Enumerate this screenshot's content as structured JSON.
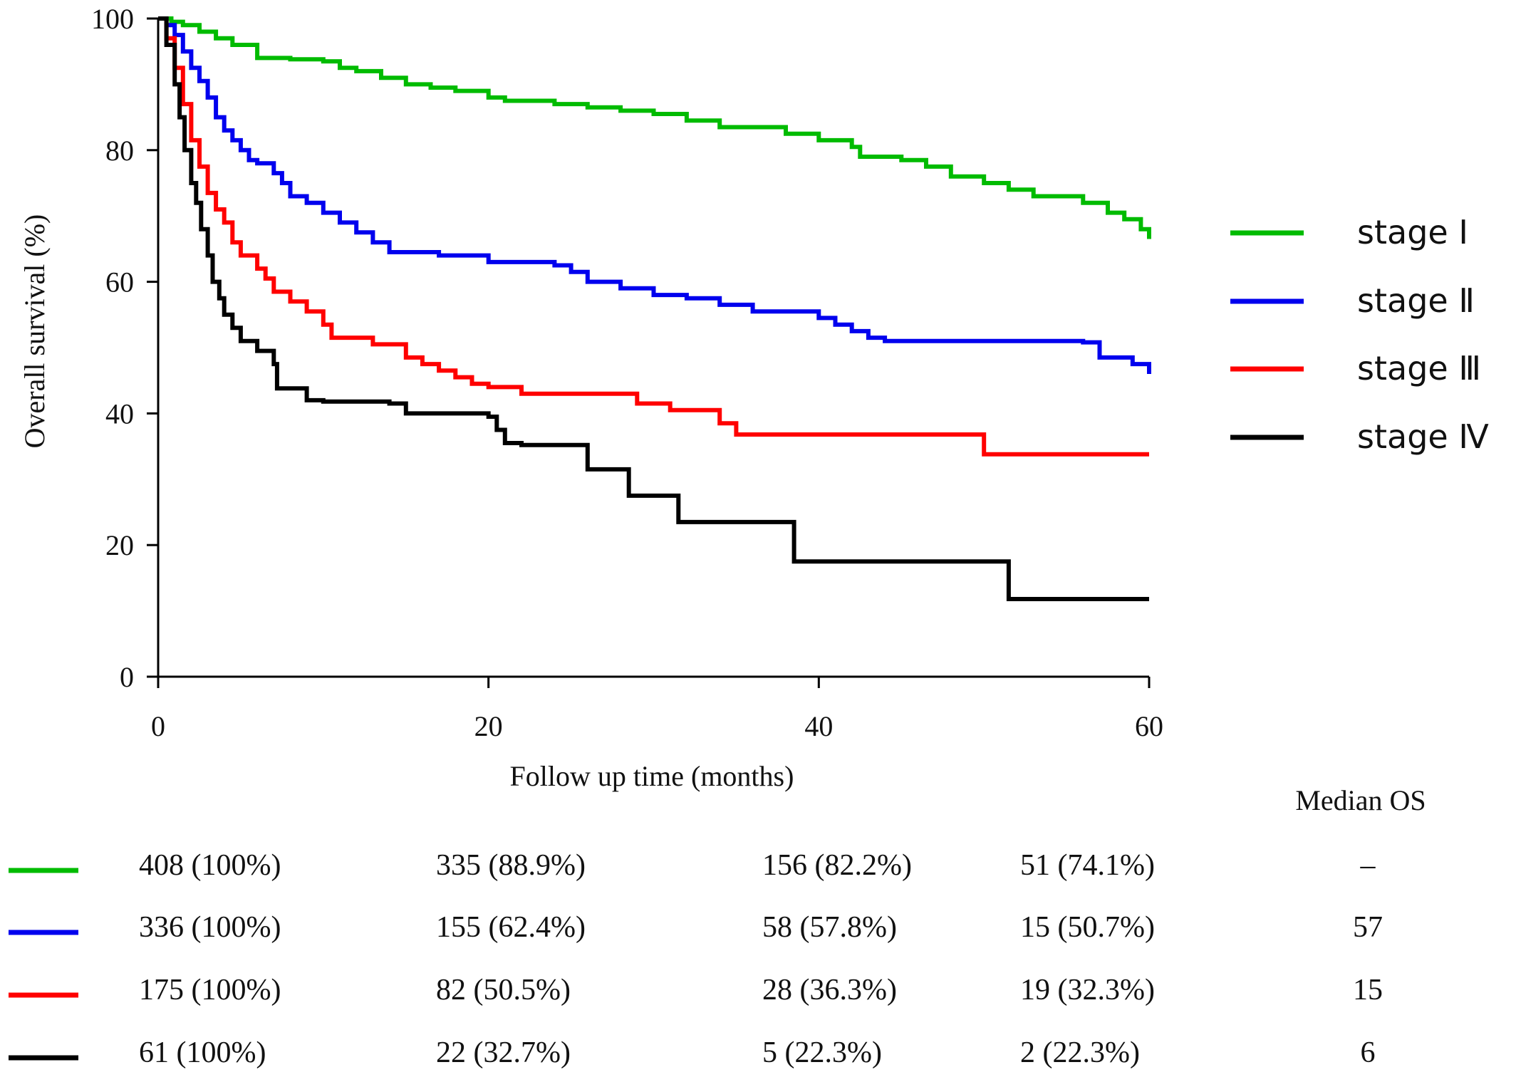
{
  "chart_data": {
    "type": "line",
    "step": true,
    "xlabel": "Follow up time (months)",
    "ylabel": "Overall survival (%)",
    "xlim": [
      0,
      60
    ],
    "ylim": [
      0,
      100
    ],
    "xticks": [
      0,
      20,
      40,
      60
    ],
    "yticks": [
      0,
      20,
      40,
      60,
      80,
      100
    ],
    "grid": false,
    "legend_position": "right",
    "series": [
      {
        "name": "stage Ⅰ",
        "color": "#00bb00",
        "x": [
          0,
          0.8,
          1.5,
          2.5,
          3.5,
          4.5,
          6,
          8,
          10,
          11,
          12,
          13.5,
          15,
          16.5,
          18,
          20,
          21,
          24,
          26,
          28,
          30,
          32,
          34,
          38,
          40,
          42,
          42.5,
          45,
          46.5,
          48,
          50,
          51.5,
          53,
          56,
          57.5,
          58.5,
          59.5,
          60
        ],
        "y": [
          100,
          99.5,
          99,
          98,
          97,
          96,
          94,
          93.8,
          93.5,
          92.5,
          92,
          91,
          90,
          89.5,
          89,
          88,
          87.5,
          87,
          86.5,
          86,
          85.5,
          84.5,
          83.5,
          82.5,
          81.5,
          80.5,
          79,
          78.5,
          77.5,
          76,
          75,
          74,
          73,
          72,
          70.5,
          69.5,
          68,
          66.5
        ]
      },
      {
        "name": "stage Ⅱ",
        "color": "#0000ee",
        "x": [
          0,
          0.5,
          1,
          1.5,
          2,
          2.5,
          3,
          3.5,
          4,
          4.5,
          5,
          5.5,
          6,
          7,
          7.5,
          8,
          9,
          10,
          11,
          12,
          13,
          14,
          17,
          20,
          24,
          25,
          26,
          28,
          30,
          32,
          34,
          36,
          40,
          41,
          42,
          43,
          44,
          56,
          57,
          59,
          60
        ],
        "y": [
          100,
          99,
          97.5,
          95,
          92.5,
          90.5,
          88,
          85,
          83,
          81.5,
          80,
          78.5,
          78,
          76.5,
          75,
          73,
          72,
          70.5,
          69,
          67.5,
          66,
          64.5,
          64,
          63,
          62.5,
          61.5,
          60,
          59,
          58,
          57.5,
          56.5,
          55.5,
          54.5,
          53.5,
          52.5,
          51.5,
          51,
          50.8,
          48.5,
          47.5,
          46
        ]
      },
      {
        "name": "stage Ⅲ",
        "color": "#ff0000",
        "x": [
          0,
          0.5,
          1,
          1.5,
          2,
          2.5,
          3,
          3.5,
          4,
          4.5,
          5,
          6,
          6.5,
          7,
          8,
          9,
          10,
          10.5,
          13,
          15,
          16,
          17,
          18,
          19,
          20,
          22,
          25,
          29,
          30,
          31,
          34,
          35,
          45,
          50,
          55,
          60
        ],
        "y": [
          100,
          97,
          92.5,
          87,
          81.5,
          77.5,
          73.5,
          71,
          69,
          66,
          64,
          62,
          60.5,
          58.5,
          57,
          55.5,
          53.5,
          51.5,
          50.5,
          48.5,
          47.5,
          46.5,
          45.5,
          44.5,
          44,
          43,
          43,
          41.5,
          41.5,
          40.5,
          38.5,
          36.8,
          36.8,
          33.8,
          33.8,
          33.8
        ]
      },
      {
        "name": "stage Ⅳ",
        "color": "#000000",
        "x": [
          0,
          0.5,
          1,
          1.3,
          1.6,
          2,
          2.3,
          2.6,
          3,
          3.3,
          3.7,
          4,
          4.5,
          5,
          6,
          7,
          7.2,
          9,
          10,
          14,
          15,
          20,
          20.5,
          21,
          22,
          26,
          28.5,
          31.5,
          38.5,
          51.5,
          60
        ],
        "y": [
          100,
          96,
          90,
          85,
          80,
          75,
          72,
          68,
          64,
          60,
          57.5,
          55,
          53,
          51,
          49.5,
          47.5,
          43.8,
          42,
          41.8,
          41.5,
          40,
          39.5,
          37.5,
          35.5,
          35.2,
          31.5,
          27.5,
          23.5,
          17.5,
          11.8,
          11.8
        ]
      }
    ],
    "risk_table": {
      "header": "Median OS",
      "rows": [
        {
          "color": "#00bb00",
          "cells": [
            "408 (100%)",
            "335 (88.9%)",
            "156 (82.2%)",
            "51 (74.1%)"
          ],
          "median": "–"
        },
        {
          "color": "#0000ee",
          "cells": [
            "336 (100%)",
            "155 (62.4%)",
            "58 (57.8%)",
            "15 (50.7%)"
          ],
          "median": "57"
        },
        {
          "color": "#ff0000",
          "cells": [
            "175 (100%)",
            "82 (50.5%)",
            "28 (36.3%)",
            "19 (32.3%)"
          ],
          "median": "15"
        },
        {
          "color": "#000000",
          "cells": [
            "61 (100%)",
            "22 (32.7%)",
            "5 (22.3%)",
            "2 (22.3%)"
          ],
          "median": "6"
        }
      ]
    }
  }
}
